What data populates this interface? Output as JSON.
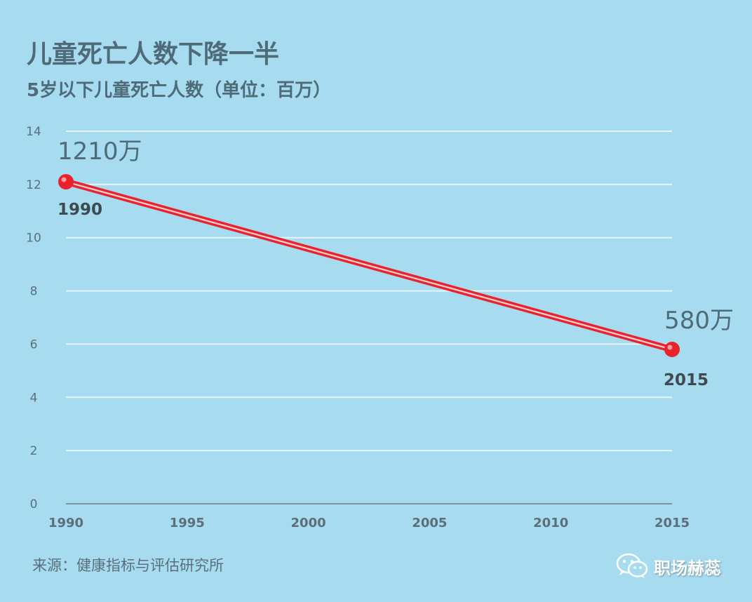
{
  "title": "儿童死亡人数下降一半",
  "subtitle": "5岁以下儿童死亡人数（单位：百万）",
  "source": "来源：健康指标与评估研究所",
  "watermark": {
    "text": "职场赫蕊",
    "icon": "wechat-icon"
  },
  "colors": {
    "background": "#a7dcf0",
    "line": "#e8232e",
    "grid": "#e6f5fb",
    "text": "#4f6b78"
  },
  "chart_data": {
    "type": "line",
    "title": "儿童死亡人数下降一半",
    "subtitle": "5岁以下儿童死亡人数（单位：百万）",
    "x": [
      1990,
      2015
    ],
    "x_ticks": [
      "1990",
      "1995",
      "2000",
      "2005",
      "2010",
      "2015"
    ],
    "xlim": [
      1990,
      2015
    ],
    "y_ticks": [
      "0",
      "2",
      "4",
      "6",
      "8",
      "10",
      "12",
      "14"
    ],
    "ylim": [
      0,
      14
    ],
    "grid": true,
    "series": [
      {
        "values": [
          12.1,
          5.8
        ],
        "annotations": [
          "1210万",
          "580万"
        ],
        "point_labels": [
          "1990",
          "2015"
        ]
      }
    ]
  }
}
